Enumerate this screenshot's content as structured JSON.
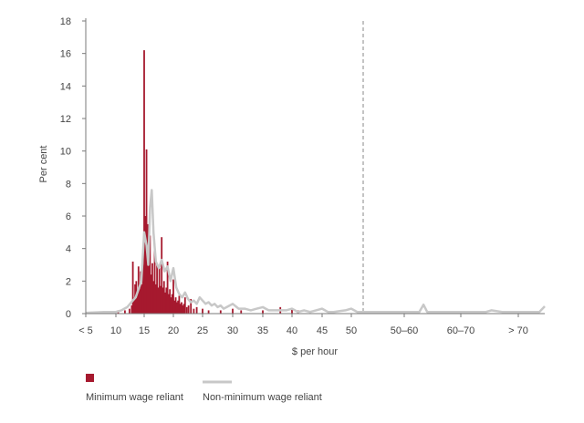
{
  "chart_data": {
    "type": "bar",
    "title": "",
    "ylabel": "Per cent",
    "xlabel": "$ per hour",
    "ylim": [
      0,
      18
    ],
    "y_ticks": [
      0,
      2,
      4,
      6,
      8,
      10,
      12,
      14,
      16,
      18
    ],
    "x_tick_labels": [
      "< 5",
      "10",
      "15",
      "20",
      "25",
      "30",
      "35",
      "40",
      "45",
      "50",
      "50–60",
      "60–70",
      "> 70"
    ],
    "grid": false,
    "legend_position": "bottom-left",
    "reference_line": {
      "x": 52,
      "style": "dashed"
    },
    "series": [
      {
        "name": "Minimum wage reliant",
        "type": "bar",
        "color": "#a6192e",
        "points": [
          {
            "x": 10.4,
            "y": 0.2
          },
          {
            "x": 11.6,
            "y": 0.2
          },
          {
            "x": 12.4,
            "y": 0.3
          },
          {
            "x": 12.8,
            "y": 0.5
          },
          {
            "x": 13.0,
            "y": 3.2
          },
          {
            "x": 13.2,
            "y": 0.9
          },
          {
            "x": 13.4,
            "y": 1.8
          },
          {
            "x": 13.6,
            "y": 2.0
          },
          {
            "x": 13.8,
            "y": 1.3
          },
          {
            "x": 14.0,
            "y": 2.9
          },
          {
            "x": 14.2,
            "y": 1.5
          },
          {
            "x": 14.4,
            "y": 2.6
          },
          {
            "x": 14.6,
            "y": 1.8
          },
          {
            "x": 14.8,
            "y": 3.0
          },
          {
            "x": 15.0,
            "y": 16.2
          },
          {
            "x": 15.2,
            "y": 6.0
          },
          {
            "x": 15.4,
            "y": 10.1
          },
          {
            "x": 15.6,
            "y": 5.5
          },
          {
            "x": 15.8,
            "y": 3.4
          },
          {
            "x": 16.0,
            "y": 4.8
          },
          {
            "x": 16.2,
            "y": 2.4
          },
          {
            "x": 16.4,
            "y": 3.1
          },
          {
            "x": 16.6,
            "y": 2.0
          },
          {
            "x": 16.8,
            "y": 4.2
          },
          {
            "x": 17.0,
            "y": 1.8
          },
          {
            "x": 17.2,
            "y": 3.0
          },
          {
            "x": 17.4,
            "y": 1.6
          },
          {
            "x": 17.6,
            "y": 2.8
          },
          {
            "x": 17.8,
            "y": 1.7
          },
          {
            "x": 18.0,
            "y": 4.7
          },
          {
            "x": 18.2,
            "y": 1.6
          },
          {
            "x": 18.4,
            "y": 2.0
          },
          {
            "x": 18.6,
            "y": 1.3
          },
          {
            "x": 18.8,
            "y": 1.6
          },
          {
            "x": 19.0,
            "y": 3.2
          },
          {
            "x": 19.2,
            "y": 1.2
          },
          {
            "x": 19.4,
            "y": 1.5
          },
          {
            "x": 19.6,
            "y": 1.0
          },
          {
            "x": 19.8,
            "y": 1.2
          },
          {
            "x": 20.0,
            "y": 2.1
          },
          {
            "x": 20.2,
            "y": 0.8
          },
          {
            "x": 20.4,
            "y": 1.0
          },
          {
            "x": 20.6,
            "y": 0.7
          },
          {
            "x": 20.8,
            "y": 0.8
          },
          {
            "x": 21.0,
            "y": 1.1
          },
          {
            "x": 21.2,
            "y": 0.6
          },
          {
            "x": 21.4,
            "y": 0.7
          },
          {
            "x": 21.6,
            "y": 0.5
          },
          {
            "x": 21.8,
            "y": 0.6
          },
          {
            "x": 22.0,
            "y": 1.0
          },
          {
            "x": 22.3,
            "y": 0.4
          },
          {
            "x": 22.6,
            "y": 0.5
          },
          {
            "x": 23.0,
            "y": 0.9
          },
          {
            "x": 23.5,
            "y": 0.3
          },
          {
            "x": 24.0,
            "y": 0.4
          },
          {
            "x": 25.0,
            "y": 0.3
          },
          {
            "x": 26.0,
            "y": 0.2
          },
          {
            "x": 28.0,
            "y": 0.2
          },
          {
            "x": 30.0,
            "y": 0.3
          },
          {
            "x": 31.4,
            "y": 0.2
          },
          {
            "x": 35.0,
            "y": 0.2
          },
          {
            "x": 38.0,
            "y": 0.4
          },
          {
            "x": 40.0,
            "y": 0.3
          },
          {
            "x": 41.0,
            "y": 0.2
          }
        ]
      },
      {
        "name": "Non-minimum wage reliant",
        "type": "line",
        "color": "#c8c8c8",
        "points": [
          {
            "x": 5,
            "y": 0.05
          },
          {
            "x": 8,
            "y": 0.1
          },
          {
            "x": 10,
            "y": 0.1
          },
          {
            "x": 11,
            "y": 0.2
          },
          {
            "x": 12,
            "y": 0.4
          },
          {
            "x": 12.5,
            "y": 0.6
          },
          {
            "x": 13,
            "y": 0.8
          },
          {
            "x": 13.5,
            "y": 1.0
          },
          {
            "x": 14,
            "y": 1.5
          },
          {
            "x": 14.5,
            "y": 2.0
          },
          {
            "x": 15,
            "y": 5.0
          },
          {
            "x": 15.4,
            "y": 4.2
          },
          {
            "x": 15.7,
            "y": 3.0
          },
          {
            "x": 16,
            "y": 6.5
          },
          {
            "x": 16.3,
            "y": 7.6
          },
          {
            "x": 16.6,
            "y": 5.0
          },
          {
            "x": 17,
            "y": 3.2
          },
          {
            "x": 17.5,
            "y": 2.8
          },
          {
            "x": 18,
            "y": 3.3
          },
          {
            "x": 18.5,
            "y": 2.6
          },
          {
            "x": 19,
            "y": 2.9
          },
          {
            "x": 19.5,
            "y": 2.0
          },
          {
            "x": 20,
            "y": 2.8
          },
          {
            "x": 20.5,
            "y": 1.6
          },
          {
            "x": 21,
            "y": 1.2
          },
          {
            "x": 21.5,
            "y": 1.0
          },
          {
            "x": 22,
            "y": 1.3
          },
          {
            "x": 22.5,
            "y": 0.9
          },
          {
            "x": 23,
            "y": 0.7
          },
          {
            "x": 23.5,
            "y": 0.8
          },
          {
            "x": 24,
            "y": 0.6
          },
          {
            "x": 24.5,
            "y": 1.0
          },
          {
            "x": 25,
            "y": 0.8
          },
          {
            "x": 25.5,
            "y": 0.6
          },
          {
            "x": 26,
            "y": 0.7
          },
          {
            "x": 26.5,
            "y": 0.5
          },
          {
            "x": 27,
            "y": 0.6
          },
          {
            "x": 27.5,
            "y": 0.4
          },
          {
            "x": 28,
            "y": 0.5
          },
          {
            "x": 28.5,
            "y": 0.3
          },
          {
            "x": 29,
            "y": 0.4
          },
          {
            "x": 30,
            "y": 0.6
          },
          {
            "x": 31,
            "y": 0.3
          },
          {
            "x": 32,
            "y": 0.3
          },
          {
            "x": 33,
            "y": 0.2
          },
          {
            "x": 34,
            "y": 0.3
          },
          {
            "x": 35,
            "y": 0.4
          },
          {
            "x": 36,
            "y": 0.2
          },
          {
            "x": 37,
            "y": 0.2
          },
          {
            "x": 38,
            "y": 0.2
          },
          {
            "x": 39,
            "y": 0.2
          },
          {
            "x": 40,
            "y": 0.3
          },
          {
            "x": 41,
            "y": 0.1
          },
          {
            "x": 42,
            "y": 0.2
          },
          {
            "x": 43,
            "y": 0.1
          },
          {
            "x": 44,
            "y": 0.2
          },
          {
            "x": 45,
            "y": 0.3
          },
          {
            "x": 46,
            "y": 0.1
          },
          {
            "x": 47,
            "y": 0.1
          },
          {
            "x": 48,
            "y": 0.15
          },
          {
            "x": 49,
            "y": 0.2
          },
          {
            "x": 50,
            "y": 0.3
          },
          {
            "x": 51,
            "y": 0.1
          },
          {
            "x": 52,
            "y": 0.1
          },
          {
            "x": 55,
            "y": 0.1
          },
          {
            "x": 58,
            "y": 0.1
          },
          {
            "x": 61,
            "y": 0.1
          },
          {
            "x": 62.5,
            "y": 0.1
          },
          {
            "x": 63.3,
            "y": 0.55
          },
          {
            "x": 64,
            "y": 0.1
          },
          {
            "x": 68,
            "y": 0.1
          },
          {
            "x": 72,
            "y": 0.1
          },
          {
            "x": 75,
            "y": 0.1
          },
          {
            "x": 76,
            "y": 0.2
          },
          {
            "x": 78,
            "y": 0.1
          },
          {
            "x": 82,
            "y": 0.1
          },
          {
            "x": 85,
            "y": 0.1
          },
          {
            "x": 86,
            "y": 0.45
          }
        ]
      }
    ]
  }
}
